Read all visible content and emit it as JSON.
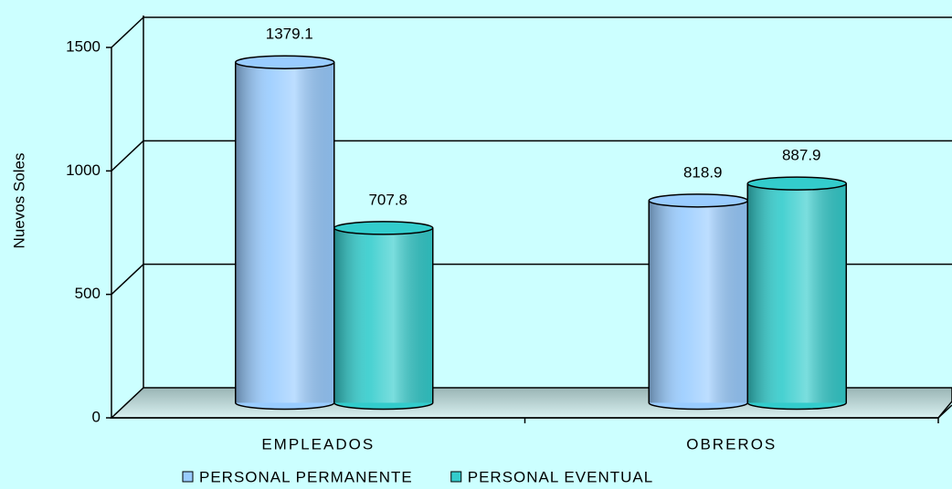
{
  "chart_data": {
    "type": "bar",
    "y_label": "Nuevos Soles",
    "categories": [
      "EMPLEADOS",
      "OBREROS"
    ],
    "series": [
      {
        "name": "PERSONAL PERMANENTE",
        "color": "#99ccff",
        "values": [
          1379.1,
          818.9
        ]
      },
      {
        "name": "PERSONAL EVENTUAL",
        "color": "#33cccc",
        "values": [
          707.8,
          887.9
        ]
      }
    ],
    "ylim": [
      0,
      1500
    ],
    "yticks": [
      0,
      500,
      1000,
      1500
    ],
    "grid": true,
    "legend": "bottom"
  }
}
